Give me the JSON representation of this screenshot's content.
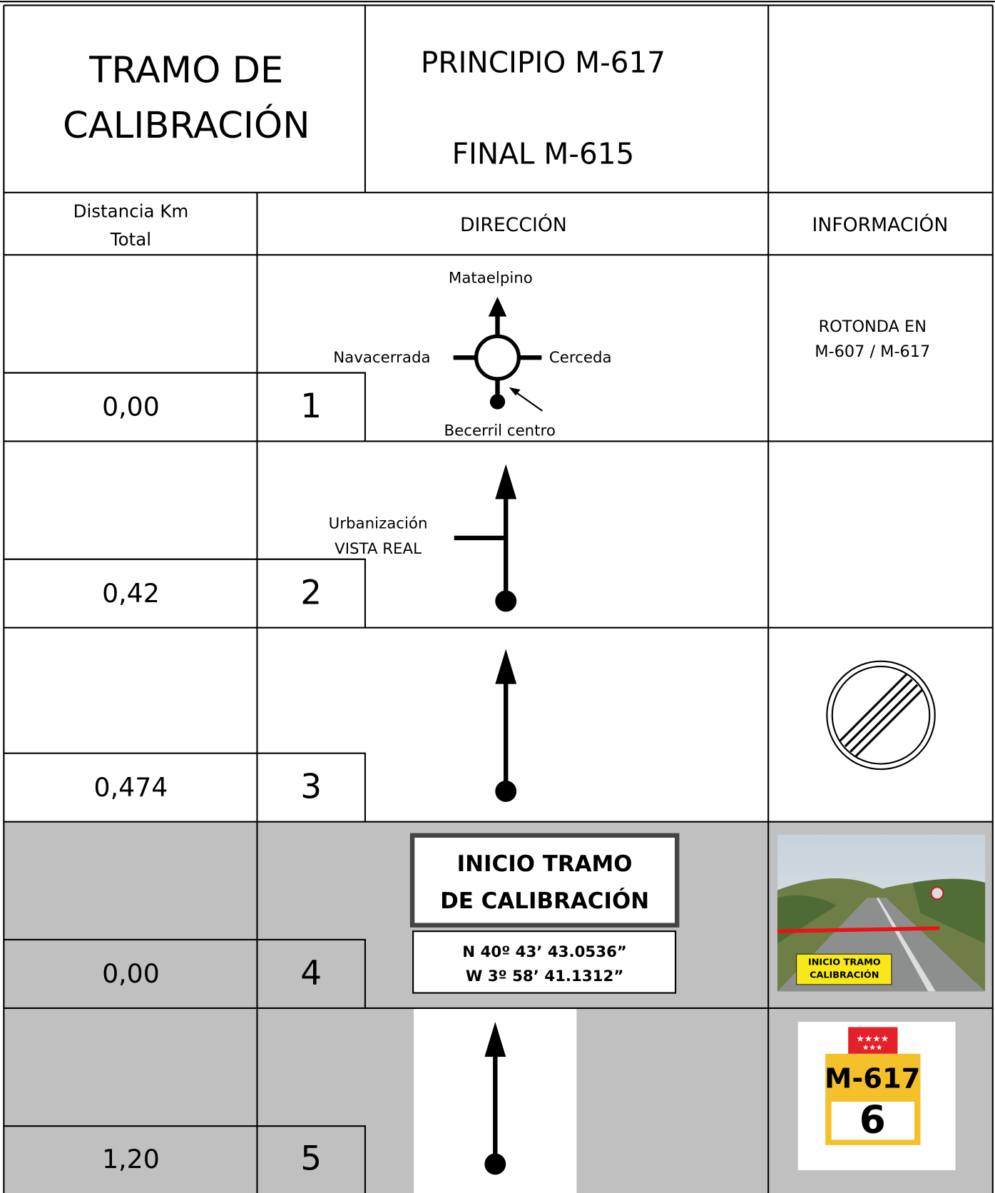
{
  "header": {
    "title": [
      "TRAMO DE",
      "CALIBRACIÓN"
    ],
    "route": [
      "PRINCIPIO M-617",
      "FINAL M-615"
    ]
  },
  "columns": {
    "distance": [
      "Distancia Km",
      "Total"
    ],
    "direction": "DIRECCIÓN",
    "information": "INFORMACIÓN"
  },
  "rows": [
    {
      "distance": "0,00",
      "number": "1",
      "labels": [
        "Mataelpino",
        "Navacerrada",
        "Cerceda",
        "Becerril centro"
      ],
      "info": [
        "ROTONDA EN",
        "M-607 / M-617"
      ]
    },
    {
      "distance": "0,42",
      "number": "2",
      "labels": [
        "Urbanización",
        "VISTA REAL"
      ]
    },
    {
      "distance": "0,474",
      "number": "3"
    },
    {
      "distance": "0,00",
      "number": "4",
      "sign": [
        "INICIO TRAMO",
        "DE CALIBRACIÓN"
      ],
      "coordinates": [
        "N 40º 43’ 43.0536”",
        "W 3º 58’ 41.1312”"
      ],
      "photo_label": [
        "INICIO TRAMO",
        "CALIBRACIÓN"
      ]
    },
    {
      "distance": "1,20",
      "number": "5",
      "road_sign": {
        "road": "M-617",
        "km": "6"
      }
    }
  ]
}
